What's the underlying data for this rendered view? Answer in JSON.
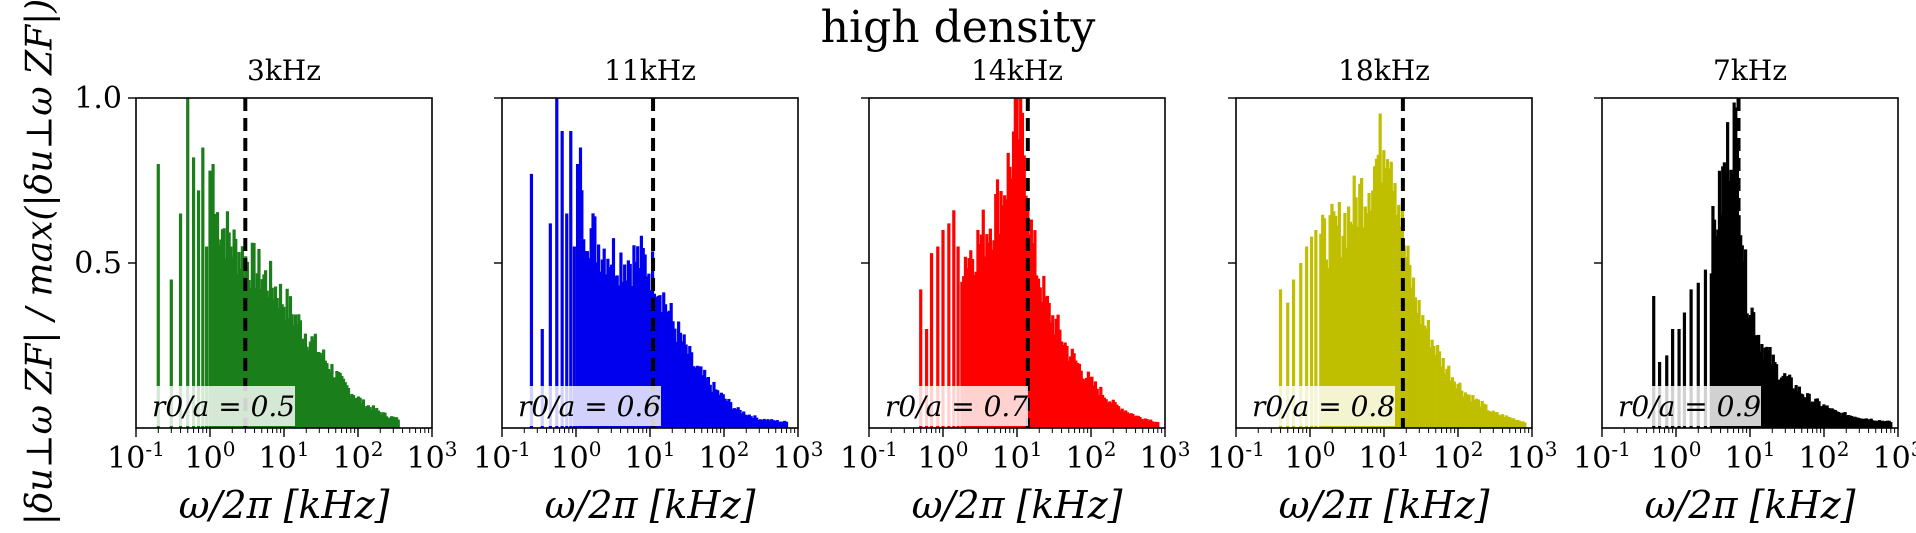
{
  "figure": {
    "suptitle": "high density",
    "ylabel": "|δu⊥ω ZF| / max(|δu⊥ω ZF|)"
  },
  "chart_data": [
    {
      "type": "bar",
      "title": "3kHz",
      "xlabel": "ω/2π [kHz]",
      "xscale": "log",
      "xlim": [
        0.1,
        1000
      ],
      "ylim": [
        0,
        1.0
      ],
      "yticks": [
        "0.5",
        "1.0"
      ],
      "xticks": [
        "10^-1",
        "10^0",
        "10^1",
        "10^2",
        "10^3"
      ],
      "color": "#1a7f1a",
      "annotation": "r0/a = 0.5",
      "marker_frequency_khz": 3.0,
      "spikes": [
        [
          0.2,
          0.8
        ],
        [
          0.3,
          0.45
        ],
        [
          0.4,
          0.65
        ],
        [
          0.5,
          1.0
        ],
        [
          0.6,
          0.82
        ],
        [
          0.7,
          0.72
        ],
        [
          0.8,
          0.85
        ],
        [
          0.9,
          0.55
        ],
        [
          1.0,
          0.78
        ],
        [
          1.1,
          0.8
        ]
      ],
      "envelope": [
        [
          1.2,
          0.7
        ],
        [
          2.0,
          0.6
        ],
        [
          3.0,
          0.55
        ],
        [
          5.0,
          0.5
        ],
        [
          8.0,
          0.45
        ],
        [
          15.0,
          0.35
        ],
        [
          30.0,
          0.25
        ],
        [
          60.0,
          0.15
        ],
        [
          120.0,
          0.08
        ],
        [
          250.0,
          0.04
        ],
        [
          350.0,
          0.03
        ]
      ]
    },
    {
      "type": "bar",
      "title": "11kHz",
      "xlabel": "ω/2π [kHz]",
      "xscale": "log",
      "xlim": [
        0.1,
        1000
      ],
      "ylim": [
        0,
        1.0
      ],
      "xticks": [
        "10^-1",
        "10^0",
        "10^1",
        "10^2",
        "10^3"
      ],
      "color": "#0000ee",
      "annotation": "r0/a = 0.6",
      "marker_frequency_khz": 11.0,
      "spikes": [
        [
          0.25,
          0.77
        ],
        [
          0.35,
          0.3
        ],
        [
          0.45,
          0.62
        ],
        [
          0.55,
          1.0
        ],
        [
          0.65,
          0.9
        ],
        [
          0.75,
          0.65
        ],
        [
          0.85,
          0.9
        ],
        [
          0.95,
          0.55
        ],
        [
          1.05,
          0.8
        ],
        [
          1.15,
          0.85
        ]
      ],
      "envelope": [
        [
          1.2,
          0.7
        ],
        [
          2.0,
          0.6
        ],
        [
          4.0,
          0.55
        ],
        [
          8.0,
          0.55
        ],
        [
          12.0,
          0.5
        ],
        [
          20.0,
          0.35
        ],
        [
          40.0,
          0.2
        ],
        [
          80.0,
          0.12
        ],
        [
          150.0,
          0.06
        ],
        [
          300.0,
          0.03
        ],
        [
          700.0,
          0.02
        ]
      ]
    },
    {
      "type": "bar",
      "title": "14kHz",
      "xlabel": "ω/2π [kHz]",
      "xscale": "log",
      "xlim": [
        0.1,
        1000
      ],
      "ylim": [
        0,
        1.0
      ],
      "xticks": [
        "10^-1",
        "10^0",
        "10^1",
        "10^2",
        "10^3"
      ],
      "color": "#ff0000",
      "annotation": "r0/a = 0.7",
      "marker_frequency_khz": 14.0,
      "spikes": [
        [
          0.5,
          0.42
        ],
        [
          0.6,
          0.3
        ],
        [
          0.7,
          0.53
        ],
        [
          0.85,
          0.55
        ],
        [
          1.0,
          0.6
        ],
        [
          1.2,
          0.62
        ],
        [
          1.4,
          0.66
        ],
        [
          1.6,
          0.55
        ]
      ],
      "envelope": [
        [
          1.8,
          0.55
        ],
        [
          3.0,
          0.6
        ],
        [
          5.0,
          0.7
        ],
        [
          8.0,
          0.85
        ],
        [
          10.0,
          1.0
        ],
        [
          13.0,
          0.9
        ],
        [
          16.0,
          0.6
        ],
        [
          25.0,
          0.4
        ],
        [
          50.0,
          0.25
        ],
        [
          100.0,
          0.15
        ],
        [
          200.0,
          0.08
        ],
        [
          400.0,
          0.04
        ],
        [
          800.0,
          0.02
        ]
      ]
    },
    {
      "type": "bar",
      "title": "18kHz",
      "xlabel": "ω/2π [kHz]",
      "xscale": "log",
      "xlim": [
        0.1,
        1000
      ],
      "ylim": [
        0,
        1.0
      ],
      "xticks": [
        "10^-1",
        "10^0",
        "10^1",
        "10^2",
        "10^3"
      ],
      "color": "#bfbf00",
      "annotation": "r0/a = 0.8",
      "marker_frequency_khz": 18.0,
      "spikes": [
        [
          0.4,
          0.42
        ],
        [
          0.5,
          0.38
        ],
        [
          0.6,
          0.45
        ],
        [
          0.75,
          0.5
        ],
        [
          0.9,
          0.55
        ],
        [
          1.05,
          0.58
        ],
        [
          1.2,
          0.6
        ]
      ],
      "envelope": [
        [
          1.4,
          0.6
        ],
        [
          2.5,
          0.65
        ],
        [
          4.0,
          0.72
        ],
        [
          6.0,
          0.8
        ],
        [
          9.0,
          0.9
        ],
        [
          11.0,
          1.0
        ],
        [
          14.0,
          0.85
        ],
        [
          20.0,
          0.55
        ],
        [
          30.0,
          0.38
        ],
        [
          60.0,
          0.22
        ],
        [
          120.0,
          0.12
        ],
        [
          300.0,
          0.05
        ],
        [
          800.0,
          0.02
        ]
      ]
    },
    {
      "type": "bar",
      "title": "7kHz",
      "xlabel": "ω/2π [kHz]",
      "xscale": "log",
      "xlim": [
        0.1,
        1000
      ],
      "ylim": [
        0,
        1.0
      ],
      "xticks": [
        "10^-1",
        "10^0",
        "10^1",
        "10^2",
        "10^3"
      ],
      "color": "#000000",
      "annotation": "r0/a = 0.9",
      "marker_frequency_khz": 7.0,
      "spikes": [
        [
          0.5,
          0.4
        ],
        [
          0.6,
          0.2
        ],
        [
          0.75,
          0.22
        ],
        [
          0.9,
          0.3
        ],
        [
          1.1,
          0.3
        ],
        [
          1.3,
          0.35
        ],
        [
          1.6,
          0.42
        ],
        [
          2.0,
          0.44
        ],
        [
          2.5,
          0.48
        ]
      ],
      "envelope": [
        [
          3.0,
          0.6
        ],
        [
          4.0,
          0.75
        ],
        [
          5.0,
          0.9
        ],
        [
          6.0,
          1.0
        ],
        [
          7.0,
          0.85
        ],
        [
          9.0,
          0.45
        ],
        [
          14.0,
          0.28
        ],
        [
          25.0,
          0.18
        ],
        [
          60.0,
          0.1
        ],
        [
          150.0,
          0.05
        ],
        [
          400.0,
          0.03
        ],
        [
          800.0,
          0.02
        ]
      ]
    }
  ]
}
